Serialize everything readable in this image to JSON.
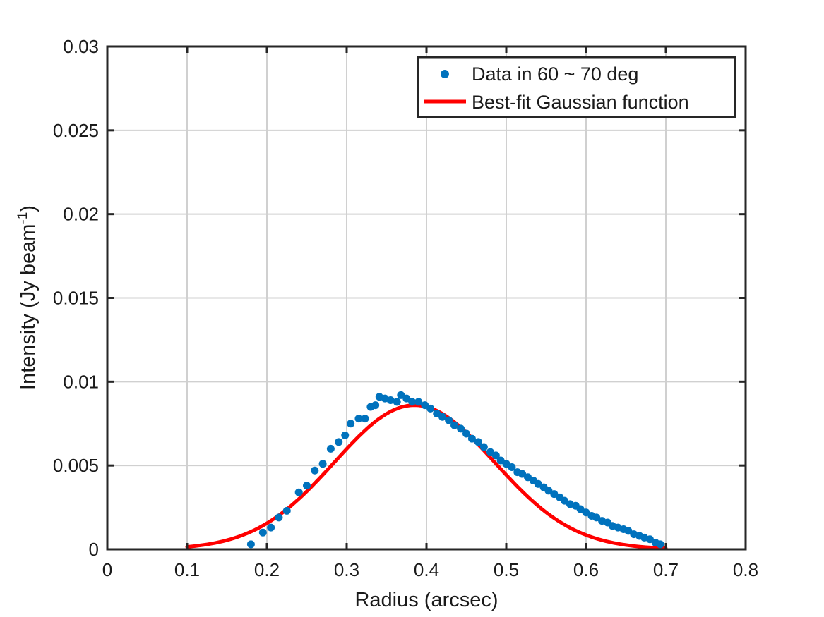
{
  "chart_data": {
    "type": "scatter",
    "xlabel": "Radius (arcsec)",
    "ylabel_main": "Intensity (Jy beam",
    "ylabel_sup": "-1",
    "ylabel_close": ")",
    "xlim": [
      0,
      0.8
    ],
    "ylim": [
      0,
      0.03
    ],
    "xticks": [
      0,
      0.1,
      0.2,
      0.3,
      0.4,
      0.5,
      0.6,
      0.7,
      0.8
    ],
    "xtick_labels": [
      "0",
      "0.1",
      "0.2",
      "0.3",
      "0.4",
      "0.5",
      "0.6",
      "0.7",
      "0.8"
    ],
    "yticks": [
      0,
      0.005,
      0.01,
      0.015,
      0.02,
      0.025,
      0.03
    ],
    "ytick_labels": [
      "0",
      "0.005",
      "0.01",
      "0.015",
      "0.02",
      "0.025",
      "0.03"
    ],
    "grid": true,
    "legend_position": "top-right",
    "colors": {
      "data": "#0072BD",
      "fit": "#ff0000",
      "grid": "#d0d0d0",
      "axis": "#262626"
    },
    "series": [
      {
        "name": "Data in 60 ~ 70 deg",
        "kind": "scatter",
        "points": [
          [
            0.18,
            0.0003
          ],
          [
            0.195,
            0.001
          ],
          [
            0.205,
            0.0013
          ],
          [
            0.215,
            0.0019
          ],
          [
            0.225,
            0.0023
          ],
          [
            0.24,
            0.0034
          ],
          [
            0.25,
            0.0038
          ],
          [
            0.26,
            0.0047
          ],
          [
            0.27,
            0.0051
          ],
          [
            0.28,
            0.006
          ],
          [
            0.29,
            0.0064
          ],
          [
            0.298,
            0.0068
          ],
          [
            0.305,
            0.0075
          ],
          [
            0.315,
            0.0078
          ],
          [
            0.323,
            0.0078
          ],
          [
            0.33,
            0.0085
          ],
          [
            0.336,
            0.0086
          ],
          [
            0.341,
            0.0091
          ],
          [
            0.348,
            0.009
          ],
          [
            0.355,
            0.0089
          ],
          [
            0.363,
            0.0088
          ],
          [
            0.368,
            0.0092
          ],
          [
            0.375,
            0.009
          ],
          [
            0.382,
            0.0088
          ],
          [
            0.39,
            0.0088
          ],
          [
            0.398,
            0.0086
          ],
          [
            0.405,
            0.0084
          ],
          [
            0.413,
            0.0081
          ],
          [
            0.42,
            0.0079
          ],
          [
            0.428,
            0.0077
          ],
          [
            0.435,
            0.0074
          ],
          [
            0.443,
            0.0072
          ],
          [
            0.45,
            0.0069
          ],
          [
            0.457,
            0.0066
          ],
          [
            0.465,
            0.0064
          ],
          [
            0.472,
            0.0061
          ],
          [
            0.48,
            0.0058
          ],
          [
            0.487,
            0.0056
          ],
          [
            0.493,
            0.0053
          ],
          [
            0.5,
            0.0051
          ],
          [
            0.507,
            0.0049
          ],
          [
            0.514,
            0.0046
          ],
          [
            0.52,
            0.0045
          ],
          [
            0.527,
            0.0043
          ],
          [
            0.534,
            0.0041
          ],
          [
            0.54,
            0.0039
          ],
          [
            0.547,
            0.0037
          ],
          [
            0.553,
            0.0035
          ],
          [
            0.56,
            0.0033
          ],
          [
            0.567,
            0.0031
          ],
          [
            0.573,
            0.0029
          ],
          [
            0.58,
            0.0027
          ],
          [
            0.587,
            0.0026
          ],
          [
            0.593,
            0.0024
          ],
          [
            0.6,
            0.0022
          ],
          [
            0.607,
            0.002
          ],
          [
            0.613,
            0.0019
          ],
          [
            0.62,
            0.0017
          ],
          [
            0.627,
            0.0016
          ],
          [
            0.633,
            0.0014
          ],
          [
            0.64,
            0.0013
          ],
          [
            0.647,
            0.0012
          ],
          [
            0.653,
            0.0011
          ],
          [
            0.66,
            0.0009
          ],
          [
            0.667,
            0.0008
          ],
          [
            0.673,
            0.0007
          ],
          [
            0.68,
            0.0006
          ],
          [
            0.687,
            0.0004
          ],
          [
            0.693,
            0.0003
          ]
        ]
      },
      {
        "name": "Best-fit Gaussian function",
        "kind": "line",
        "gaussian": {
          "amplitude": 0.0086,
          "center": 0.385,
          "sigma": 0.1,
          "x_start": 0.1,
          "x_end": 0.7
        }
      }
    ]
  }
}
